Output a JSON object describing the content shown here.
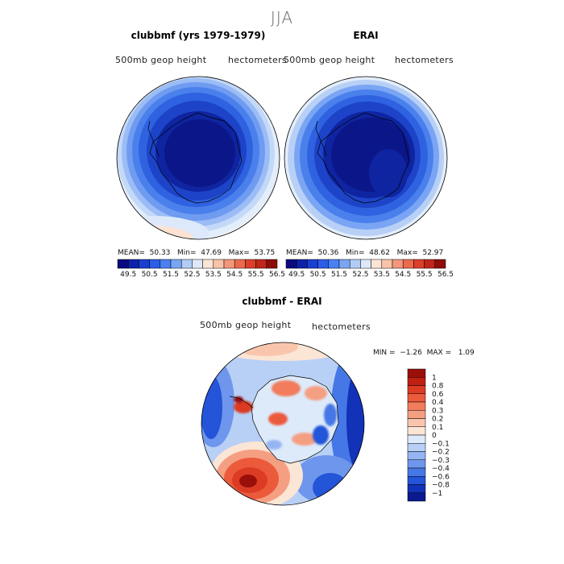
{
  "season": "JJA",
  "panels": [
    {
      "title": "clubbmf (yrs 1979-1979)",
      "left_label": "500mb  geop  height",
      "right_label": "hectometers",
      "stats": {
        "mean_label": "MEAN=",
        "mean": "50.33",
        "min_label": "Min=",
        "min": "47.69",
        "max_label": "Max=",
        "max": "53.75"
      }
    },
    {
      "title": "ERAI",
      "left_label": "500mb  geop  height",
      "right_label": "hectometers",
      "stats": {
        "mean_label": "MEAN=",
        "mean": "50.36",
        "min_label": "Min=",
        "min": "48.62",
        "max_label": "Max=",
        "max": "52.97"
      }
    }
  ],
  "diff_panel": {
    "title": "clubbmf - ERAI",
    "left_label": "500mb  geop  height",
    "right_label": "hectometers",
    "stats": {
      "min_label": "MIN =",
      "min": "−1.26",
      "max_label": "MAX =",
      "max": "1.09"
    }
  },
  "chart_data": [
    {
      "type": "heatmap",
      "title": "clubbmf (yrs 1979-1979)",
      "variable": "500mb geop height",
      "units": "hectometers",
      "projection": "south-polar stereographic",
      "mean": 50.33,
      "min": 47.69,
      "max": 53.75,
      "levels": [
        "49.5",
        "50.5",
        "51.5",
        "52.5",
        "53.5",
        "54.5",
        "55.5",
        "56.5"
      ],
      "colors": [
        "#0a0a80",
        "#0d22a8",
        "#1b3fd0",
        "#2a5ee8",
        "#4a80f2",
        "#7aa5f4",
        "#b0ccf6",
        "#dde9fa",
        "#fde5d6",
        "#f8c3a8",
        "#f2977a",
        "#ea6a4f",
        "#dc3f2b",
        "#c0261a",
        "#8e0d0a"
      ]
    },
    {
      "type": "heatmap",
      "title": "ERAI",
      "variable": "500mb geop height",
      "units": "hectometers",
      "projection": "south-polar stereographic",
      "mean": 50.36,
      "min": 48.62,
      "max": 52.97,
      "levels": [
        "49.5",
        "50.5",
        "51.5",
        "52.5",
        "53.5",
        "54.5",
        "55.5",
        "56.5"
      ],
      "colors": [
        "#0a0a80",
        "#0d22a8",
        "#1b3fd0",
        "#2a5ee8",
        "#4a80f2",
        "#7aa5f4",
        "#b0ccf6",
        "#dde9fa",
        "#fde5d6",
        "#f8c3a8",
        "#f2977a",
        "#ea6a4f",
        "#dc3f2b",
        "#c0261a",
        "#8e0d0a"
      ]
    },
    {
      "type": "heatmap",
      "title": "clubbmf - ERAI",
      "variable": "500mb geop height",
      "units": "hectometers",
      "projection": "south-polar stereographic",
      "min": -1.26,
      "max": 1.09,
      "levels": [
        "1",
        "0.8",
        "0.6",
        "0.4",
        "0.3",
        "0.2",
        "0.1",
        "0",
        "−0.1",
        "−0.2",
        "−0.3",
        "−0.4",
        "−0.6",
        "−0.8",
        "−1"
      ],
      "colors": [
        "#9a0f0a",
        "#c01f12",
        "#dc3b24",
        "#ec5a3c",
        "#f27c5c",
        "#f59f82",
        "#f9c6ad",
        "#fbe5d5",
        "#ddeafa",
        "#b8d0f6",
        "#94b5f2",
        "#6e96ec",
        "#4677e6",
        "#2454d8",
        "#1232b8",
        "#0b1990"
      ]
    }
  ]
}
